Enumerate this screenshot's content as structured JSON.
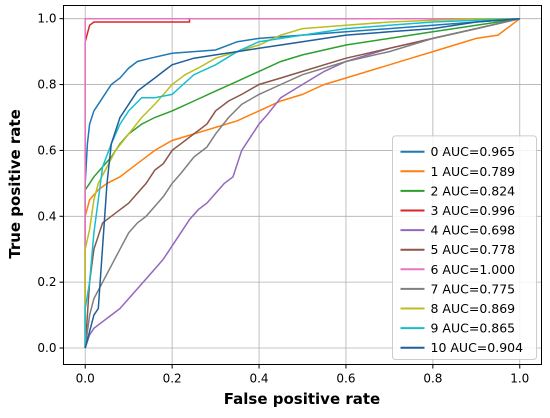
{
  "chart_data": {
    "type": "line",
    "title": "",
    "xlabel": "False positive rate",
    "ylabel": "True positive rate",
    "xlim": [
      -0.05,
      1.05
    ],
    "ylim": [
      -0.05,
      1.04
    ],
    "xticks": [
      "0.0",
      "0.2",
      "0.4",
      "0.6",
      "0.8",
      "1.0"
    ],
    "yticks": [
      "0.0",
      "0.2",
      "0.4",
      "0.6",
      "0.8",
      "1.0"
    ],
    "grid": true,
    "legend_position": "lower-right",
    "series": [
      {
        "name": "0 AUC=0.965",
        "color": "#1f77b4",
        "x": [
          0,
          0,
          0.005,
          0.01,
          0.02,
          0.04,
          0.06,
          0.08,
          0.1,
          0.12,
          0.15,
          0.2,
          0.25,
          0.3,
          0.35,
          0.4,
          0.5,
          0.6,
          0.7,
          0.8,
          0.9,
          1.0
        ],
        "y": [
          0,
          0.5,
          0.62,
          0.68,
          0.72,
          0.76,
          0.8,
          0.82,
          0.85,
          0.87,
          0.88,
          0.895,
          0.9,
          0.905,
          0.93,
          0.94,
          0.95,
          0.96,
          0.97,
          0.98,
          0.99,
          1.0
        ]
      },
      {
        "name": "1 AUC=0.789",
        "color": "#ff7f0e",
        "x": [
          0,
          0,
          0.01,
          0.03,
          0.05,
          0.08,
          0.1,
          0.13,
          0.16,
          0.2,
          0.25,
          0.3,
          0.35,
          0.4,
          0.45,
          0.5,
          0.55,
          0.6,
          0.65,
          0.7,
          0.75,
          0.8,
          0.85,
          0.9,
          0.95,
          0.98,
          1.0
        ],
        "y": [
          0,
          0.4,
          0.45,
          0.48,
          0.5,
          0.52,
          0.54,
          0.57,
          0.6,
          0.63,
          0.65,
          0.67,
          0.69,
          0.72,
          0.75,
          0.77,
          0.8,
          0.82,
          0.84,
          0.86,
          0.88,
          0.9,
          0.92,
          0.94,
          0.95,
          0.98,
          1.0
        ]
      },
      {
        "name": "2 AUC=0.824",
        "color": "#2ca02c",
        "x": [
          0,
          0,
          0.01,
          0.02,
          0.04,
          0.06,
          0.08,
          0.1,
          0.13,
          0.16,
          0.2,
          0.25,
          0.3,
          0.35,
          0.4,
          0.45,
          0.5,
          0.6,
          0.7,
          0.8,
          0.9,
          1.0
        ],
        "y": [
          0,
          0.48,
          0.5,
          0.52,
          0.55,
          0.58,
          0.62,
          0.65,
          0.68,
          0.7,
          0.72,
          0.75,
          0.78,
          0.81,
          0.84,
          0.87,
          0.89,
          0.92,
          0.94,
          0.96,
          0.98,
          1.0
        ]
      },
      {
        "name": "3 AUC=0.996",
        "color": "#d62728",
        "x": [
          0,
          0,
          0.01,
          0.02,
          0.05,
          0.1,
          0.15,
          0.2,
          0.22,
          0.24,
          0.24,
          1.0
        ],
        "y": [
          0,
          0.93,
          0.98,
          0.99,
          0.99,
          0.99,
          0.99,
          0.99,
          0.99,
          0.99,
          1.0,
          1.0
        ]
      },
      {
        "name": "4 AUC=0.698",
        "color": "#9467bd",
        "x": [
          0,
          0.01,
          0.02,
          0.04,
          0.06,
          0.08,
          0.1,
          0.12,
          0.14,
          0.16,
          0.18,
          0.2,
          0.22,
          0.24,
          0.26,
          0.28,
          0.3,
          0.32,
          0.34,
          0.36,
          0.38,
          0.4,
          0.42,
          0.45,
          0.5,
          0.55,
          0.6,
          0.7,
          0.8,
          0.9,
          1.0
        ],
        "y": [
          0,
          0.04,
          0.06,
          0.08,
          0.1,
          0.12,
          0.15,
          0.18,
          0.21,
          0.24,
          0.27,
          0.31,
          0.35,
          0.39,
          0.42,
          0.44,
          0.47,
          0.5,
          0.52,
          0.6,
          0.64,
          0.68,
          0.71,
          0.76,
          0.8,
          0.84,
          0.87,
          0.91,
          0.94,
          0.97,
          1.0
        ]
      },
      {
        "name": "5 AUC=0.778",
        "color": "#8c564b",
        "x": [
          0,
          0.01,
          0.02,
          0.04,
          0.06,
          0.08,
          0.1,
          0.12,
          0.14,
          0.16,
          0.18,
          0.2,
          0.22,
          0.25,
          0.28,
          0.3,
          0.33,
          0.36,
          0.4,
          0.45,
          0.5,
          0.6,
          0.7,
          0.8,
          0.9,
          1.0
        ],
        "y": [
          0,
          0.2,
          0.3,
          0.38,
          0.4,
          0.42,
          0.44,
          0.47,
          0.5,
          0.54,
          0.56,
          0.6,
          0.62,
          0.65,
          0.68,
          0.72,
          0.75,
          0.77,
          0.8,
          0.82,
          0.84,
          0.88,
          0.91,
          0.94,
          0.97,
          1.0
        ]
      },
      {
        "name": "6 AUC=1.000",
        "color": "#e377c2",
        "x": [
          0,
          0,
          1.0
        ],
        "y": [
          0,
          1.0,
          1.0
        ]
      },
      {
        "name": "7 AUC=0.775",
        "color": "#7f7f7f",
        "x": [
          0,
          0.01,
          0.02,
          0.04,
          0.06,
          0.08,
          0.1,
          0.12,
          0.14,
          0.16,
          0.18,
          0.2,
          0.22,
          0.25,
          0.28,
          0.3,
          0.33,
          0.36,
          0.4,
          0.45,
          0.5,
          0.6,
          0.7,
          0.8,
          0.9,
          1.0
        ],
        "y": [
          0,
          0.1,
          0.15,
          0.2,
          0.25,
          0.3,
          0.35,
          0.38,
          0.4,
          0.43,
          0.46,
          0.5,
          0.53,
          0.58,
          0.61,
          0.65,
          0.7,
          0.74,
          0.77,
          0.8,
          0.83,
          0.87,
          0.9,
          0.94,
          0.97,
          1.0
        ]
      },
      {
        "name": "8 AUC=0.869",
        "color": "#bcbd22",
        "x": [
          0,
          0,
          0.01,
          0.02,
          0.03,
          0.05,
          0.07,
          0.1,
          0.13,
          0.16,
          0.2,
          0.23,
          0.26,
          0.3,
          0.35,
          0.4,
          0.45,
          0.5,
          0.6,
          0.7,
          0.8,
          0.9,
          1.0
        ],
        "y": [
          0,
          0.3,
          0.36,
          0.45,
          0.5,
          0.55,
          0.6,
          0.65,
          0.7,
          0.74,
          0.8,
          0.83,
          0.85,
          0.88,
          0.9,
          0.92,
          0.95,
          0.97,
          0.98,
          0.99,
          0.995,
          1.0,
          1.0
        ]
      },
      {
        "name": "9 AUC=0.865",
        "color": "#17becf",
        "x": [
          0,
          0,
          0.01,
          0.02,
          0.03,
          0.04,
          0.06,
          0.08,
          0.1,
          0.13,
          0.16,
          0.2,
          0.25,
          0.3,
          0.35,
          0.4,
          0.5,
          0.6,
          0.7,
          0.8,
          0.9,
          1.0
        ],
        "y": [
          0,
          0.12,
          0.2,
          0.35,
          0.45,
          0.55,
          0.62,
          0.68,
          0.72,
          0.76,
          0.76,
          0.77,
          0.83,
          0.86,
          0.9,
          0.93,
          0.95,
          0.97,
          0.98,
          0.99,
          0.995,
          1.0
        ]
      },
      {
        "name": "10 AUC=0.904",
        "color": "#1f5f9a",
        "x": [
          0,
          0.01,
          0.02,
          0.03,
          0.05,
          0.06,
          0.08,
          0.1,
          0.12,
          0.14,
          0.16,
          0.18,
          0.2,
          0.25,
          0.3,
          0.35,
          0.4,
          0.5,
          0.6,
          0.7,
          0.8,
          0.9,
          1.0
        ],
        "y": [
          0,
          0.05,
          0.1,
          0.12,
          0.5,
          0.62,
          0.7,
          0.74,
          0.78,
          0.8,
          0.82,
          0.84,
          0.86,
          0.88,
          0.89,
          0.9,
          0.91,
          0.93,
          0.95,
          0.96,
          0.97,
          0.99,
          1.0
        ]
      }
    ]
  }
}
